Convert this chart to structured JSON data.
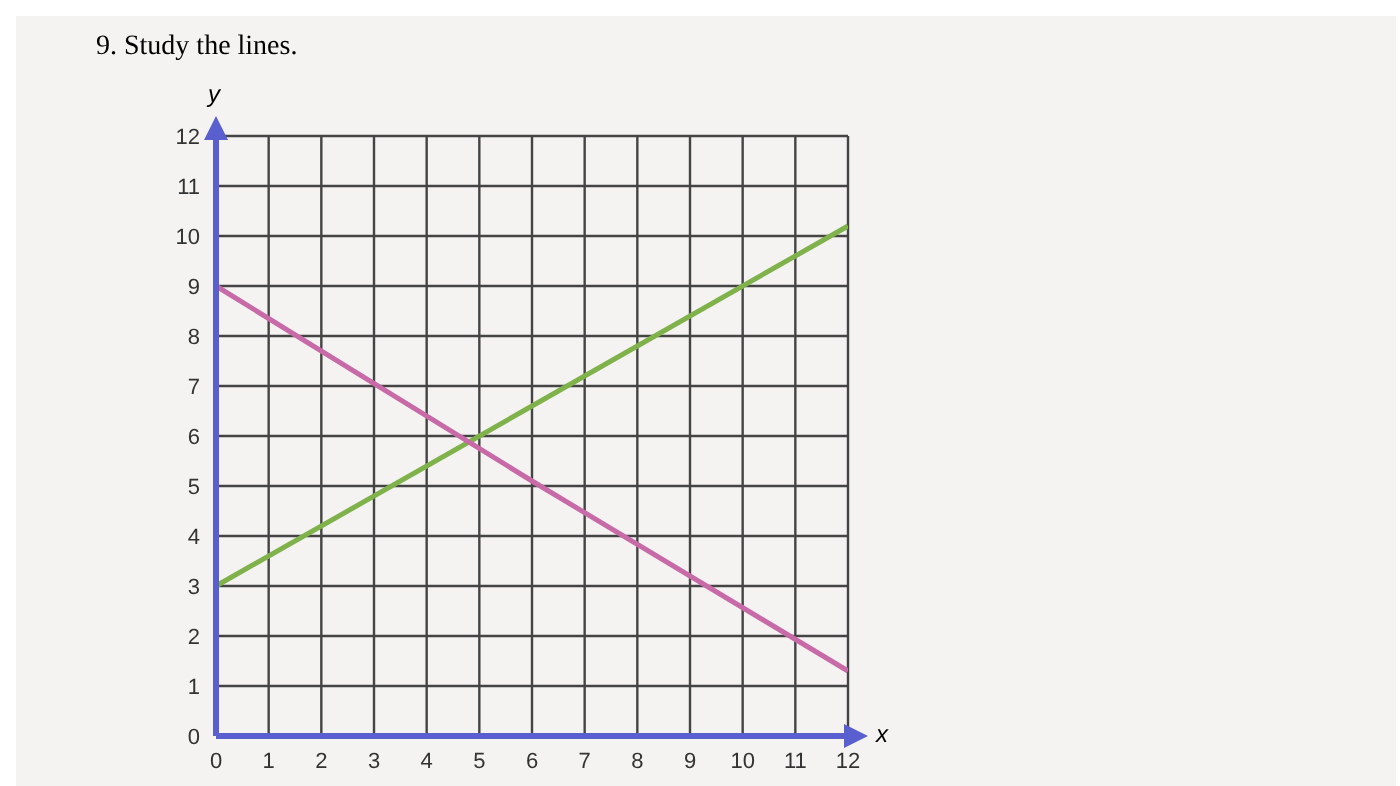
{
  "chart_data": {
    "type": "line",
    "title": "9. Study the lines.",
    "xlabel": "x",
    "ylabel": "y",
    "x": [
      0,
      6,
      12
    ],
    "series": [
      {
        "color": "#7fb24a",
        "values": [
          3,
          6.6,
          10.2
        ]
      },
      {
        "color": "#c86aa8",
        "values": [
          9,
          5.1,
          1.3
        ]
      }
    ],
    "xlim": [
      0,
      12
    ],
    "ylim": [
      0,
      12
    ],
    "xticks": [
      0,
      1,
      2,
      3,
      4,
      5,
      6,
      7,
      8,
      9,
      10,
      11,
      12
    ],
    "yticks": [
      0,
      1,
      2,
      3,
      4,
      5,
      6,
      7,
      8,
      9,
      10,
      11,
      12
    ],
    "grid": true,
    "legend": false,
    "marker": "none",
    "line_style": "solid"
  }
}
